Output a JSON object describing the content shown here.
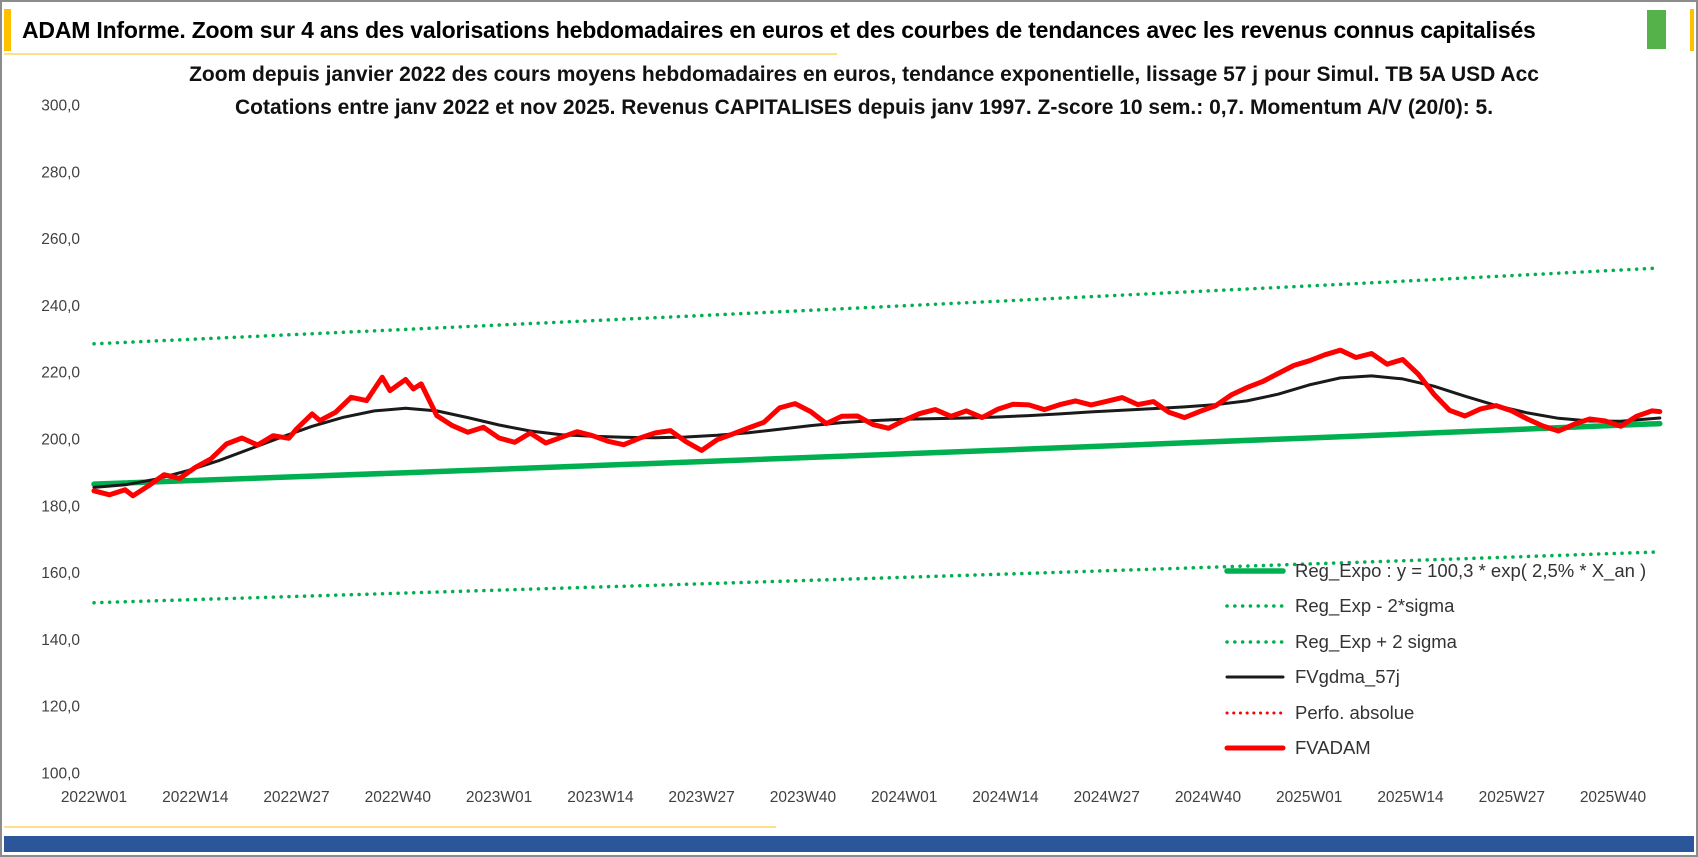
{
  "header": {
    "title": "ADAM Informe. Zoom sur 4 ans des valorisations hebdomadaires en euros et des courbes de tendances avec les revenus connus capitalisés"
  },
  "colors": {
    "accent_yellow": "#FFC000",
    "accent_green": "#55B24A",
    "thin_yellow": "#FFE08A",
    "footer_blue": "#2B579A",
    "axis_text": "#404040",
    "title_text": "#000000",
    "series_green": "#00B050",
    "series_red": "#FE0000",
    "series_black": "#1a1a1a"
  },
  "chart_data": {
    "type": "line",
    "title_line1": "Zoom depuis janvier 2022 des cours moyens hebdomadaires en euros, tendance exponentielle, lissage 57 j pour Simul. TB 5A USD Acc",
    "title_line2": "Cotations entre janv 2022 et nov 2025. Revenus CAPITALISES depuis janv 1997. Z-score 10 sem.: 0,7. Momentum A/V (20/0): 5.",
    "grid": false,
    "legend_position": "inside-right",
    "ylim": [
      100,
      300
    ],
    "x_range_weeks": [
      0,
      201
    ],
    "y_ticks": [
      {
        "value": 300,
        "label": "300,0"
      },
      {
        "value": 280,
        "label": "280,0"
      },
      {
        "value": 260,
        "label": "260,0"
      },
      {
        "value": 240,
        "label": "240,0"
      },
      {
        "value": 220,
        "label": "220,0"
      },
      {
        "value": 200,
        "label": "200,0"
      },
      {
        "value": 180,
        "label": "180,0"
      },
      {
        "value": 160,
        "label": "160,0"
      },
      {
        "value": 140,
        "label": "140,0"
      },
      {
        "value": 120,
        "label": "120,0"
      },
      {
        "value": 100,
        "label": "100,0"
      }
    ],
    "x_ticks": [
      {
        "week": 0,
        "label": "2022W01"
      },
      {
        "week": 13,
        "label": "2022W14"
      },
      {
        "week": 26,
        "label": "2022W27"
      },
      {
        "week": 39,
        "label": "2022W40"
      },
      {
        "week": 52,
        "label": "2023W01"
      },
      {
        "week": 65,
        "label": "2023W14"
      },
      {
        "week": 78,
        "label": "2023W27"
      },
      {
        "week": 91,
        "label": "2023W40"
      },
      {
        "week": 104,
        "label": "2024W01"
      },
      {
        "week": 117,
        "label": "2024W14"
      },
      {
        "week": 130,
        "label": "2024W27"
      },
      {
        "week": 143,
        "label": "2024W40"
      },
      {
        "week": 156,
        "label": "2025W01"
      },
      {
        "week": 169,
        "label": "2025W14"
      },
      {
        "week": 182,
        "label": "2025W27"
      },
      {
        "week": 195,
        "label": "2025W40"
      }
    ],
    "series": [
      {
        "name": "Reg_Expo",
        "label": "Reg_Expo : y = 100,3 * exp( 2,5% *  X_an )",
        "color": "#00B050",
        "style": "solid",
        "width": 5.5,
        "points": [
          [
            0,
            186.5
          ],
          [
            40,
            189.9
          ],
          [
            80,
            193.4
          ],
          [
            120,
            197.0
          ],
          [
            160,
            200.7
          ],
          [
            201,
            204.6
          ]
        ]
      },
      {
        "name": "Reg_Exp_minus",
        "label": "Reg_Exp - 2*sigma",
        "color": "#00B050",
        "style": "dotted",
        "width": 3.5,
        "points": [
          [
            0,
            151.0
          ],
          [
            40,
            153.9
          ],
          [
            80,
            156.8
          ],
          [
            120,
            159.8
          ],
          [
            160,
            162.9
          ],
          [
            201,
            166.2
          ]
        ]
      },
      {
        "name": "Reg_Exp_plus",
        "label": "Reg_Exp + 2 sigma",
        "color": "#00B050",
        "style": "dotted",
        "width": 3.5,
        "points": [
          [
            0,
            228.5
          ],
          [
            40,
            232.8
          ],
          [
            80,
            237.2
          ],
          [
            120,
            241.7
          ],
          [
            160,
            246.3
          ],
          [
            201,
            251.2
          ]
        ]
      },
      {
        "name": "FVgdma_57j",
        "label": "FVgdma_57j",
        "color": "#1a1a1a",
        "style": "solid",
        "width": 3,
        "points": [
          [
            0,
            185.5
          ],
          [
            4,
            186.3
          ],
          [
            8,
            188.0
          ],
          [
            12,
            190.5
          ],
          [
            16,
            193.5
          ],
          [
            20,
            197.0
          ],
          [
            24,
            200.5
          ],
          [
            28,
            203.8
          ],
          [
            32,
            206.5
          ],
          [
            36,
            208.4
          ],
          [
            40,
            209.2
          ],
          [
            44,
            208.4
          ],
          [
            48,
            206.4
          ],
          [
            52,
            204.2
          ],
          [
            56,
            202.4
          ],
          [
            60,
            201.3
          ],
          [
            64,
            200.8
          ],
          [
            68,
            200.5
          ],
          [
            72,
            200.4
          ],
          [
            76,
            200.6
          ],
          [
            80,
            201.1
          ],
          [
            84,
            201.9
          ],
          [
            88,
            202.9
          ],
          [
            92,
            204.0
          ],
          [
            96,
            204.9
          ],
          [
            100,
            205.5
          ],
          [
            104,
            205.9
          ],
          [
            108,
            206.1
          ],
          [
            112,
            206.3
          ],
          [
            116,
            206.6
          ],
          [
            120,
            207.0
          ],
          [
            124,
            207.5
          ],
          [
            128,
            208.1
          ],
          [
            132,
            208.6
          ],
          [
            136,
            209.1
          ],
          [
            140,
            209.6
          ],
          [
            144,
            210.3
          ],
          [
            148,
            211.4
          ],
          [
            152,
            213.4
          ],
          [
            156,
            216.2
          ],
          [
            160,
            218.3
          ],
          [
            164,
            218.9
          ],
          [
            168,
            218.0
          ],
          [
            172,
            215.8
          ],
          [
            176,
            212.8
          ],
          [
            180,
            210.0
          ],
          [
            184,
            207.8
          ],
          [
            188,
            206.2
          ],
          [
            192,
            205.4
          ],
          [
            196,
            205.3
          ],
          [
            201,
            206.3
          ]
        ]
      },
      {
        "name": "Perfo_absolue",
        "label": "Perfo. absolue",
        "color": "#FE0000",
        "style": "dotted",
        "width": 3,
        "points_same_as": "FVADAM"
      },
      {
        "name": "FVADAM",
        "label": "FVADAM",
        "color": "#FE0000",
        "style": "solid",
        "width": 5,
        "points": [
          [
            0,
            184.5
          ],
          [
            2,
            183.3
          ],
          [
            4,
            184.8
          ],
          [
            5,
            183.0
          ],
          [
            7,
            186.0
          ],
          [
            9,
            189.3
          ],
          [
            11,
            188.2
          ],
          [
            13,
            191.5
          ],
          [
            15,
            194.0
          ],
          [
            17,
            198.5
          ],
          [
            19,
            200.3
          ],
          [
            21,
            198.2
          ],
          [
            23,
            201.0
          ],
          [
            25,
            200.2
          ],
          [
            26,
            203.0
          ],
          [
            28,
            207.5
          ],
          [
            29,
            205.5
          ],
          [
            31,
            208.0
          ],
          [
            33,
            212.5
          ],
          [
            35,
            211.5
          ],
          [
            37,
            218.5
          ],
          [
            38,
            214.5
          ],
          [
            40,
            217.8
          ],
          [
            41,
            215.0
          ],
          [
            42,
            216.5
          ],
          [
            44,
            207.0
          ],
          [
            46,
            204.0
          ],
          [
            48,
            202.0
          ],
          [
            50,
            203.5
          ],
          [
            52,
            200.3
          ],
          [
            54,
            199.0
          ],
          [
            56,
            201.8
          ],
          [
            58,
            198.8
          ],
          [
            60,
            200.5
          ],
          [
            62,
            202.2
          ],
          [
            64,
            201.0
          ],
          [
            66,
            199.3
          ],
          [
            68,
            198.3
          ],
          [
            70,
            200.2
          ],
          [
            72,
            201.8
          ],
          [
            74,
            202.5
          ],
          [
            76,
            199.2
          ],
          [
            78,
            196.6
          ],
          [
            80,
            199.8
          ],
          [
            82,
            201.5
          ],
          [
            84,
            203.3
          ],
          [
            86,
            205.0
          ],
          [
            88,
            209.3
          ],
          [
            90,
            210.6
          ],
          [
            92,
            208.2
          ],
          [
            94,
            204.6
          ],
          [
            96,
            206.8
          ],
          [
            98,
            206.9
          ],
          [
            100,
            204.3
          ],
          [
            102,
            203.2
          ],
          [
            104,
            205.6
          ],
          [
            106,
            207.6
          ],
          [
            108,
            208.8
          ],
          [
            110,
            206.8
          ],
          [
            112,
            208.4
          ],
          [
            114,
            206.4
          ],
          [
            116,
            208.9
          ],
          [
            118,
            210.4
          ],
          [
            120,
            210.2
          ],
          [
            122,
            208.8
          ],
          [
            124,
            210.3
          ],
          [
            126,
            211.4
          ],
          [
            128,
            210.2
          ],
          [
            130,
            211.3
          ],
          [
            132,
            212.4
          ],
          [
            134,
            210.3
          ],
          [
            136,
            211.2
          ],
          [
            138,
            208.0
          ],
          [
            140,
            206.4
          ],
          [
            142,
            208.3
          ],
          [
            144,
            210.0
          ],
          [
            146,
            213.2
          ],
          [
            148,
            215.4
          ],
          [
            150,
            217.2
          ],
          [
            152,
            219.6
          ],
          [
            154,
            222.0
          ],
          [
            156,
            223.4
          ],
          [
            158,
            225.2
          ],
          [
            160,
            226.6
          ],
          [
            162,
            224.4
          ],
          [
            164,
            225.6
          ],
          [
            166,
            222.4
          ],
          [
            168,
            223.8
          ],
          [
            170,
            219.4
          ],
          [
            172,
            213.4
          ],
          [
            174,
            208.6
          ],
          [
            176,
            206.9
          ],
          [
            178,
            209.0
          ],
          [
            180,
            210.0
          ],
          [
            182,
            208.4
          ],
          [
            184,
            206.0
          ],
          [
            186,
            203.9
          ],
          [
            188,
            202.4
          ],
          [
            190,
            204.4
          ],
          [
            192,
            206.0
          ],
          [
            194,
            205.4
          ],
          [
            196,
            203.8
          ],
          [
            198,
            206.8
          ],
          [
            200,
            208.4
          ],
          [
            201,
            208.2
          ]
        ]
      }
    ]
  }
}
